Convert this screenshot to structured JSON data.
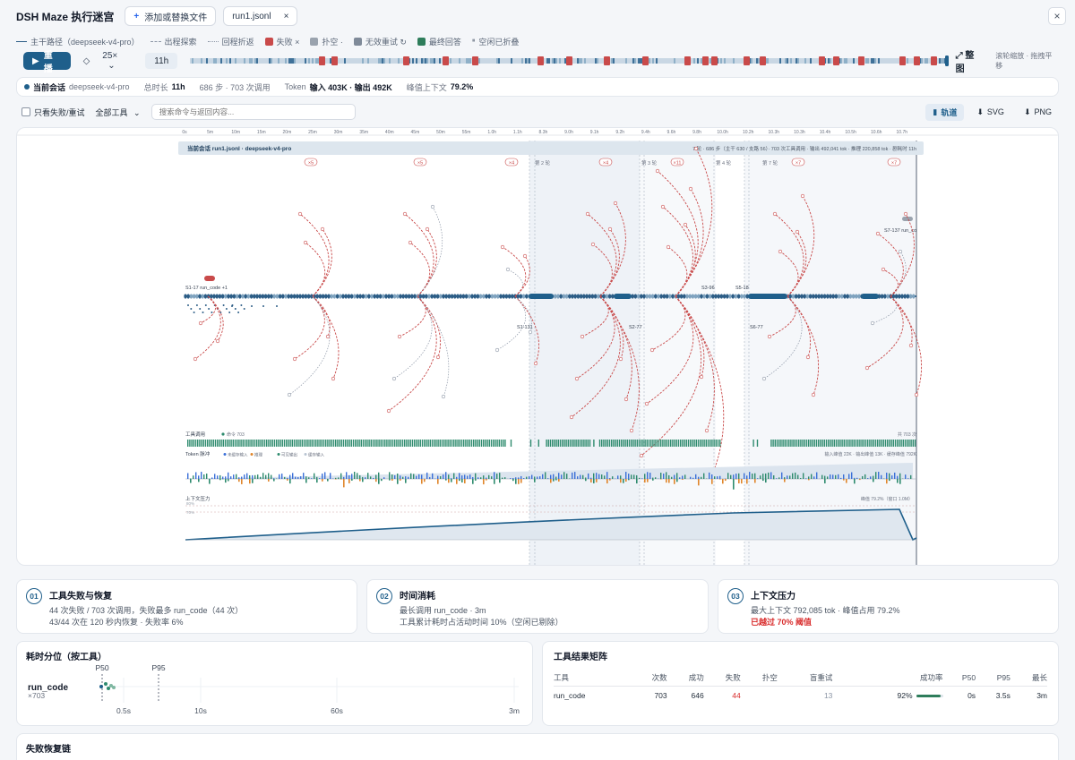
{
  "header": {
    "title": "DSH Maze 执行迷宫",
    "add_file_label": "添加或替换文件",
    "file_tab": "run1.jsonl",
    "close_symbol": "×"
  },
  "legend": [
    {
      "label": "主干路径（deepseek-v4-pro）",
      "kind": "line",
      "color": "#2c5d86"
    },
    {
      "label": "出程探索",
      "kind": "dash",
      "color": "#8b95a5"
    },
    {
      "label": "回程折返",
      "kind": "dot",
      "color": "#8b95a5"
    },
    {
      "label": "失败 ×",
      "kind": "sq",
      "color": "#c94a4a"
    },
    {
      "label": "扑空 ·",
      "kind": "sq",
      "color": "#9aa3ae"
    },
    {
      "label": "无效重试 ↻",
      "kind": "sq",
      "color": "#7f8a99"
    },
    {
      "label": "最终回答",
      "kind": "sq",
      "color": "#2e7d5b"
    },
    {
      "label": "空闲已折叠",
      "kind": "pause",
      "color": "#4b5563"
    }
  ],
  "playback": {
    "play_label": "重播",
    "speed": "25×",
    "elapsed": "11h",
    "fit_label": "整图",
    "hint": "滚轮缩放 · 拖拽平移"
  },
  "session": {
    "label": "当前会话",
    "model": "deepseek-v4-pro",
    "duration_label": "总时长",
    "duration": "11h",
    "steps_calls": "686 步 · 703 次调用",
    "token_label": "Token",
    "token_values": "输入 403K · 输出 492K",
    "peak_label": "峰值上下文",
    "peak_value": "79.2%"
  },
  "filters": {
    "only_failures": "只看失败/重试",
    "tool_select": "全部工具",
    "search_placeholder": "搜索命令与返回内容...",
    "tabs": [
      {
        "label": "轨道",
        "active": true
      },
      {
        "label": "SVG",
        "active": false
      },
      {
        "label": "PNG",
        "active": false
      }
    ]
  },
  "canvas": {
    "ruler": [
      "0s",
      "5m",
      "10m",
      "15m",
      "20m",
      "25m",
      "30m",
      "35m",
      "40m",
      "45m",
      "50m",
      "55m",
      "1.0h",
      "1.1h",
      "8.3h",
      "9.0h",
      "9.1h",
      "9.2h",
      "9.4h",
      "9.6h",
      "9.8h",
      "10.0h",
      "10.2h",
      "10.3h",
      "10.3h",
      "10.4h",
      "10.5h",
      "10.6h",
      "10.7h"
    ],
    "banner_left": "当前会话 run1.jsonl · deepseek-v4-pro",
    "banner_right": "7 轮 · 686 步（主干 630 / 支路 56）· 703 次工具调用 · 输出 492,041 tok · 推理 220,858 tok · 剧耗时 11h",
    "round_labels": [
      "第 2 轮",
      "第 3 轮",
      "第 4 轮",
      "第 7 轮"
    ],
    "fail_badges": [
      "×5",
      "×5",
      "×4",
      "×4",
      "×11",
      "×7",
      "×7"
    ],
    "node_labels": [
      "S1-17 run_code +1",
      "S1-131",
      "S2-77",
      "S3-96",
      "S5-18",
      "S6-77",
      "S7-137 run_co"
    ],
    "tool_track_label": "工具调用",
    "tool_track_legend": "命令 703",
    "tool_track_count": "共 703 次",
    "token_track_label": "Token 脉冲",
    "token_track_legend": [
      "未缓存输入",
      "推理",
      "可见输出",
      "缓存输入"
    ],
    "token_track_right": "输入峰值 22K · 输出峰值 13K · 缓存峰值 792K",
    "ctx_track_label": "上下文压力",
    "ctx_track_right": "峰值 79.2%（窗口 1.0M）",
    "ctx_ticks": [
      "80%",
      "70%"
    ]
  },
  "insights": [
    {
      "num": "01",
      "title": "工具失败与恢复",
      "lines": [
        "44 次失败 / 703 次调用，失败最多 run_code（44 次）",
        "43/44 次在 120 秒内恢复 · 失败率 6%"
      ],
      "warn": ""
    },
    {
      "num": "02",
      "title": "时间消耗",
      "lines": [
        "最长调用 run_code · 3m",
        "工具累计耗时占活动时间 10%（空闲已剔除）"
      ],
      "warn": ""
    },
    {
      "num": "03",
      "title": "上下文压力",
      "lines": [
        "最大上下文 792,085 tok · 峰值占用 79.2%"
      ],
      "warn": "已越过 70% 阈值"
    }
  ],
  "percentiles": {
    "title": "耗时分位（按工具）",
    "tool": "run_code",
    "count": "×703",
    "p50_label": "P50",
    "p95_label": "P95",
    "axis_ticks": [
      "0.5s",
      "10s",
      "60s",
      "3m"
    ]
  },
  "matrix": {
    "title": "工具结果矩阵",
    "headers": [
      "工具",
      "次数",
      "成功",
      "失败",
      "扑空",
      "盲重试",
      "成功率",
      "P50",
      "P95",
      "最长"
    ],
    "rows": [
      {
        "tool": "run_code",
        "count": "703",
        "success": "646",
        "fail": "44",
        "miss": "",
        "retry": "13",
        "rate": "92%",
        "rate_value": 0.92,
        "p50": "0s",
        "p95": "3.5s",
        "max": "3m"
      }
    ]
  },
  "chain": {
    "title": "失败恢复链"
  },
  "colors": {
    "accent": "#1f5f8b",
    "fail": "#c94a4a",
    "success": "#2e7d5b",
    "orange": "#e0862b",
    "blue": "#3a6fd8"
  }
}
